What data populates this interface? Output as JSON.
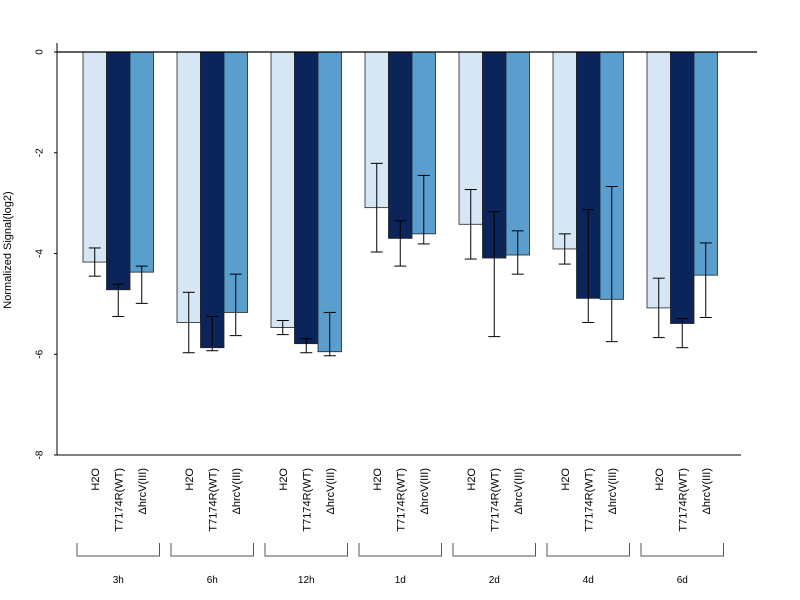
{
  "chart_data": {
    "type": "bar",
    "ylabel": "Normalized Signal(log2)",
    "ylim": [
      -8,
      0
    ],
    "yticks": [
      0,
      -2,
      -4,
      -6,
      -8
    ],
    "ytick_labels": [
      "0",
      "-2",
      "-4",
      "-6",
      "-8"
    ],
    "groups": [
      "3h",
      "6h",
      "12h",
      "1d",
      "2d",
      "4d",
      "6d"
    ],
    "series": [
      {
        "name": "H2O",
        "color": "#d6e6f5",
        "values": [
          -4.17,
          -5.37,
          -5.47,
          -3.09,
          -3.42,
          -3.91,
          -5.08
        ],
        "err_low": [
          -4.45,
          -5.97,
          -5.61,
          -3.97,
          -4.11,
          -4.21,
          -5.67
        ],
        "err_high": [
          -3.89,
          -4.77,
          -5.33,
          -2.21,
          -2.73,
          -3.61,
          -4.49
        ]
      },
      {
        "name": "T7174R(WT)",
        "color": "#0b2459",
        "values": [
          -4.72,
          -5.87,
          -5.79,
          -3.7,
          -4.09,
          -4.89,
          -5.39
        ],
        "err_low": [
          -5.25,
          -5.93,
          -5.97,
          -4.25,
          -5.65,
          -5.37,
          -5.87
        ],
        "err_high": [
          -4.61,
          -5.25,
          -5.69,
          -3.35,
          -3.17,
          -3.13,
          -5.29
        ]
      },
      {
        "name": "ΔhrcV(III)",
        "color": "#5a9ecd",
        "values": [
          -4.37,
          -5.17,
          -5.95,
          -3.61,
          -4.03,
          -4.91,
          -4.43
        ],
        "err_low": [
          -4.99,
          -5.63,
          -6.03,
          -3.81,
          -4.41,
          -5.75,
          -5.27
        ],
        "err_high": [
          -4.25,
          -4.41,
          -5.17,
          -2.45,
          -3.55,
          -2.67,
          -3.79
        ]
      }
    ]
  }
}
